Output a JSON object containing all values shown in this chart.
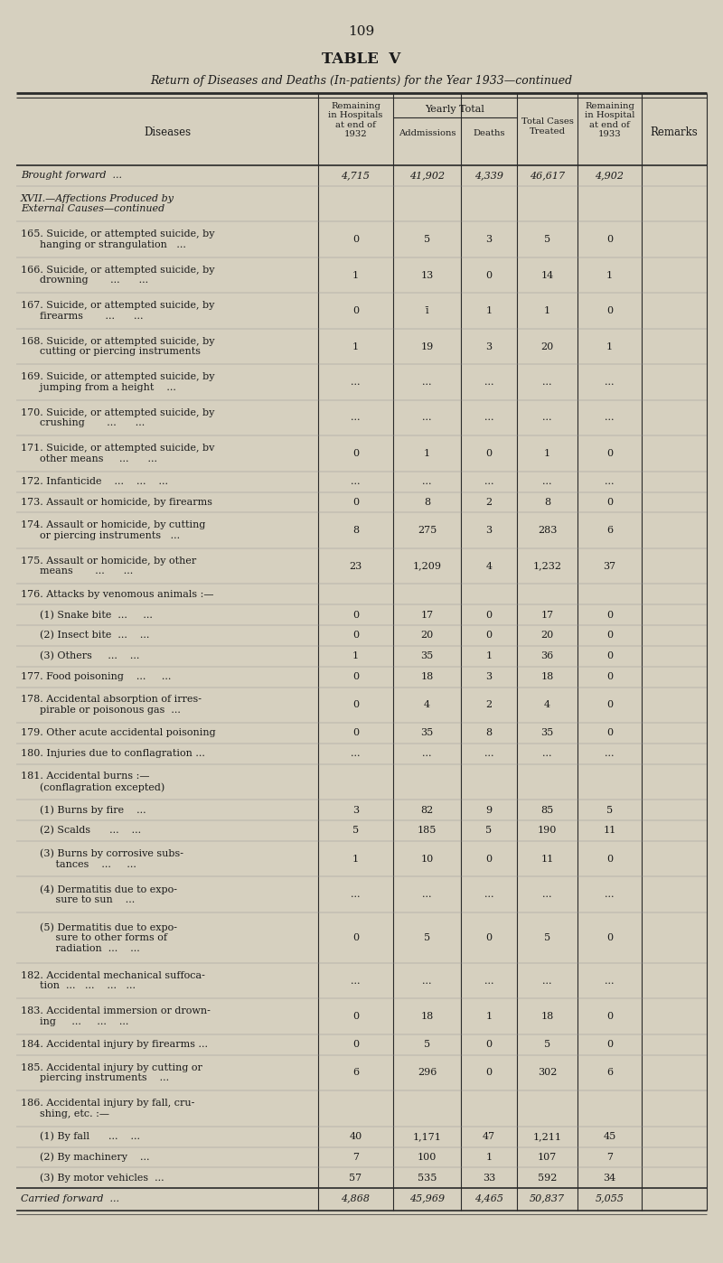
{
  "page_number": "109",
  "table_title": "TABLE  V",
  "subtitle": "Return of Diseases and Deaths (In-patients) for the Year 1933—continued",
  "bg_color": "#d6d0bf",
  "rows": [
    {
      "label": "Brought forward  ...",
      "style": "bold_italic",
      "vals": [
        "4,715",
        "41,902",
        "4,339",
        "46,617",
        "4,902",
        ""
      ]
    },
    {
      "label": "XVII.—Affections Produced by\nExternal Causes—continued",
      "style": "bold_italic",
      "vals": [
        "",
        "",
        "",
        "",
        "",
        ""
      ]
    },
    {
      "label": "165. Suicide, or attempted suicide, by\n      hanging or strangulation   ...",
      "style": "normal",
      "vals": [
        "0",
        "5",
        "3",
        "5",
        "0",
        ""
      ]
    },
    {
      "label": "166. Suicide, or attempted suicide, by\n      drowning       ...      ...",
      "style": "normal",
      "vals": [
        "1",
        "13",
        "0",
        "14",
        "1",
        ""
      ]
    },
    {
      "label": "167. Suicide, or attempted suicide, by\n      firearms       ...      ...",
      "style": "normal",
      "vals": [
        "0",
        "ī",
        "1",
        "1",
        "0",
        ""
      ]
    },
    {
      "label": "168. Suicide, or attempted suicide, by\n      cutting or piercing instruments",
      "style": "normal",
      "vals": [
        "1",
        "19",
        "3",
        "20",
        "1",
        ""
      ]
    },
    {
      "label": "169. Suicide, or attempted suicide, by\n      jumping from a height    ...",
      "style": "normal",
      "vals": [
        "...",
        "...",
        "...",
        "...",
        "...",
        ""
      ]
    },
    {
      "label": "170. Suicide, or attempted suicide, by\n      crushing       ...      ...",
      "style": "normal",
      "vals": [
        "...",
        "...",
        "...",
        "...",
        "...",
        ""
      ]
    },
    {
      "label": "171. Suicide, or attempted suicide, bv\n      other means     ...      ...",
      "style": "normal",
      "vals": [
        "0",
        "1",
        "0",
        "1",
        "0",
        ""
      ]
    },
    {
      "label": "172. Infanticide    ...    ...    ...",
      "style": "normal",
      "vals": [
        "...",
        "...",
        "...",
        "...",
        "...",
        ""
      ]
    },
    {
      "label": "173. Assault or homicide, by firearms",
      "style": "normal",
      "vals": [
        "0",
        "8",
        "2",
        "8",
        "0",
        ""
      ]
    },
    {
      "label": "174. Assault or homicide, by cutting\n      or piercing instruments   ...",
      "style": "normal",
      "vals": [
        "8",
        "275",
        "3",
        "283",
        "6",
        ""
      ]
    },
    {
      "label": "175. Assault or homicide, by other\n      means       ...      ...",
      "style": "normal",
      "vals": [
        "23",
        "1,209",
        "4",
        "1,232",
        "37",
        ""
      ]
    },
    {
      "label": "176. Attacks by venomous animals :—",
      "style": "normal",
      "vals": [
        "",
        "",
        "",
        "",
        "",
        ""
      ]
    },
    {
      "label": "      (1) Snake bite  ...     ...",
      "style": "normal",
      "vals": [
        "0",
        "17",
        "0",
        "17",
        "0",
        ""
      ]
    },
    {
      "label": "      (2) Insect bite  ...    ...",
      "style": "normal",
      "vals": [
        "0",
        "20",
        "0",
        "20",
        "0",
        ""
      ]
    },
    {
      "label": "      (3) Others     ...    ...",
      "style": "normal",
      "vals": [
        "1",
        "35",
        "1",
        "36",
        "0",
        ""
      ]
    },
    {
      "label": "177. Food poisoning    ...     ...",
      "style": "normal",
      "vals": [
        "0",
        "18",
        "3",
        "18",
        "0",
        ""
      ]
    },
    {
      "label": "178. Accidental absorption of irres-\n      pirable or poisonous gas  ...",
      "style": "normal",
      "vals": [
        "0",
        "4",
        "2",
        "4",
        "0",
        ""
      ]
    },
    {
      "label": "179. Other acute accidental poisoning",
      "style": "normal",
      "vals": [
        "0",
        "35",
        "8",
        "35",
        "0",
        ""
      ]
    },
    {
      "label": "180. Injuries due to conflagration ...",
      "style": "normal",
      "vals": [
        "...",
        "...",
        "...",
        "...",
        "...",
        ""
      ]
    },
    {
      "label": "181. Accidental burns :—\n      (conflagration excepted)",
      "style": "normal",
      "vals": [
        "",
        "",
        "",
        "",
        "",
        ""
      ]
    },
    {
      "label": "      (1) Burns by fire    ...",
      "style": "normal",
      "vals": [
        "3",
        "82",
        "9",
        "85",
        "5",
        ""
      ]
    },
    {
      "label": "      (2) Scalds      ...    ...",
      "style": "normal",
      "vals": [
        "5",
        "185",
        "5",
        "190",
        "11",
        ""
      ]
    },
    {
      "label": "      (3) Burns by corrosive subs-\n           tances    ...     ...",
      "style": "normal",
      "vals": [
        "1",
        "10",
        "0",
        "11",
        "0",
        ""
      ]
    },
    {
      "label": "      (4) Dermatitis due to expo-\n           sure to sun    ...",
      "style": "normal",
      "vals": [
        "...",
        "...",
        "...",
        "...",
        "...",
        ""
      ]
    },
    {
      "label": "      (5) Dermatitis due to expo-\n           sure to other forms of\n           radiation  ...    ...",
      "style": "normal",
      "vals": [
        "0",
        "5",
        "0",
        "5",
        "0",
        ""
      ]
    },
    {
      "label": "182. Accidental mechanical suffoca-\n      tion  ...   ...    ...   ...",
      "style": "normal",
      "vals": [
        "...",
        "...",
        "...",
        "...",
        "...",
        ""
      ]
    },
    {
      "label": "183. Accidental immersion or drown-\n      ing     ...     ...    ...",
      "style": "normal",
      "vals": [
        "0",
        "18",
        "1",
        "18",
        "0",
        ""
      ]
    },
    {
      "label": "184. Accidental injury by firearms ...",
      "style": "normal",
      "vals": [
        "0",
        "5",
        "0",
        "5",
        "0",
        ""
      ]
    },
    {
      "label": "185. Accidental injury by cutting or\n      piercing instruments    ...",
      "style": "normal",
      "vals": [
        "6",
        "296",
        "0",
        "302",
        "6",
        ""
      ]
    },
    {
      "label": "186. Accidental injury by fall, cru-\n      shing, etc. :—",
      "style": "normal",
      "vals": [
        "",
        "",
        "",
        "",
        "",
        ""
      ]
    },
    {
      "label": "      (1) By fall      ...    ...",
      "style": "normal",
      "vals": [
        "40",
        "1,171",
        "47",
        "1,211",
        "45",
        ""
      ]
    },
    {
      "label": "      (2) By machinery    ...",
      "style": "normal",
      "vals": [
        "7",
        "100",
        "1",
        "107",
        "7",
        ""
      ]
    },
    {
      "label": "      (3) By motor vehicles  ...",
      "style": "normal",
      "vals": [
        "57",
        "535",
        "33",
        "592",
        "34",
        ""
      ]
    },
    {
      "label": "Carried forward  ...",
      "style": "bold_italic",
      "vals": [
        "4,868",
        "45,969",
        "4,465",
        "50,837",
        "5,055",
        ""
      ]
    }
  ]
}
